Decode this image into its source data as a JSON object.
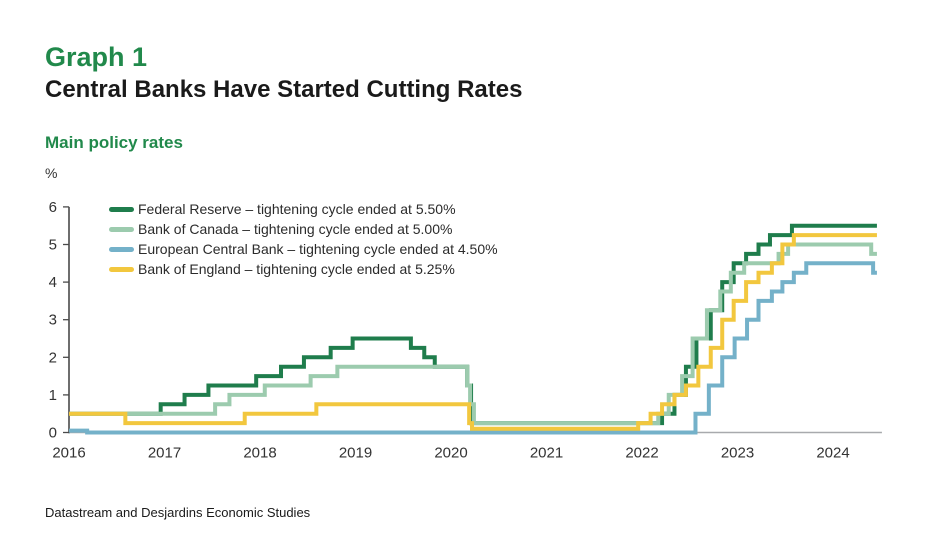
{
  "header": {
    "graph_label": "Graph 1",
    "title": "Central Banks Have Started Cutting Rates"
  },
  "subtitle": "Main policy rates",
  "unit_label": "%",
  "source": "Datastream and Desjardins Economic Studies",
  "colors": {
    "accent_green": "#21894b",
    "text_dark": "#1a1a1a",
    "axis": "#4a4a4a",
    "baseline": "#a8aaad"
  },
  "chart_data": {
    "type": "line",
    "step": true,
    "title": "Main policy rates",
    "ylabel": "%",
    "grid": false,
    "legend_position": "top-left-inside",
    "ylim": [
      0,
      6
    ],
    "y_ticks": [
      0,
      1,
      2,
      3,
      4,
      5,
      6
    ],
    "x_ticks": [
      2016,
      2017,
      2018,
      2019,
      2020,
      2021,
      2022,
      2023,
      2024
    ],
    "x_range": [
      2016,
      2024.46
    ],
    "series": [
      {
        "name": "Federal Reserve",
        "legend_label": "Federal Reserve – tightening cycle ended at 5.50%",
        "color": "#1f7d4c",
        "end_value": 5.5,
        "points": [
          [
            2016.0,
            0.5
          ],
          [
            2016.96,
            0.75
          ],
          [
            2017.21,
            1.0
          ],
          [
            2017.46,
            1.25
          ],
          [
            2017.96,
            1.5
          ],
          [
            2018.22,
            1.75
          ],
          [
            2018.46,
            2.0
          ],
          [
            2018.74,
            2.25
          ],
          [
            2018.97,
            2.5
          ],
          [
            2019.58,
            2.25
          ],
          [
            2019.72,
            2.0
          ],
          [
            2019.83,
            1.75
          ],
          [
            2020.17,
            1.25
          ],
          [
            2020.21,
            0.25
          ],
          [
            2022.21,
            0.5
          ],
          [
            2022.34,
            1.0
          ],
          [
            2022.46,
            1.75
          ],
          [
            2022.57,
            2.5
          ],
          [
            2022.72,
            3.25
          ],
          [
            2022.84,
            4.0
          ],
          [
            2022.96,
            4.5
          ],
          [
            2023.09,
            4.75
          ],
          [
            2023.22,
            5.0
          ],
          [
            2023.34,
            5.25
          ],
          [
            2023.57,
            5.5
          ]
        ]
      },
      {
        "name": "Bank of Canada",
        "legend_label": "Bank of Canada – tightening cycle ended at 5.00%",
        "color": "#9ccbae",
        "end_value": 4.75,
        "points": [
          [
            2016.0,
            0.5
          ],
          [
            2017.53,
            0.75
          ],
          [
            2017.68,
            1.0
          ],
          [
            2018.05,
            1.25
          ],
          [
            2018.53,
            1.5
          ],
          [
            2018.81,
            1.75
          ],
          [
            2020.17,
            1.25
          ],
          [
            2020.2,
            0.75
          ],
          [
            2020.24,
            0.25
          ],
          [
            2022.17,
            0.5
          ],
          [
            2022.28,
            1.0
          ],
          [
            2022.42,
            1.5
          ],
          [
            2022.53,
            2.5
          ],
          [
            2022.68,
            3.25
          ],
          [
            2022.82,
            3.75
          ],
          [
            2022.93,
            4.25
          ],
          [
            2023.07,
            4.5
          ],
          [
            2023.43,
            4.75
          ],
          [
            2023.53,
            5.0
          ],
          [
            2024.4,
            4.75
          ]
        ]
      },
      {
        "name": "European Central Bank",
        "legend_label": "European Central Bank – tightening cycle ended at 4.50%",
        "color": "#74b1c9",
        "end_value": 4.25,
        "points": [
          [
            2016.0,
            0.05
          ],
          [
            2016.19,
            0.0
          ],
          [
            2022.56,
            0.5
          ],
          [
            2022.7,
            1.25
          ],
          [
            2022.84,
            2.0
          ],
          [
            2022.97,
            2.5
          ],
          [
            2023.1,
            3.0
          ],
          [
            2023.22,
            3.5
          ],
          [
            2023.36,
            3.75
          ],
          [
            2023.47,
            4.0
          ],
          [
            2023.59,
            4.25
          ],
          [
            2023.72,
            4.5
          ],
          [
            2024.42,
            4.25
          ]
        ]
      },
      {
        "name": "Bank of England",
        "legend_label": "Bank of England – tightening cycle ended at 5.25%",
        "color": "#f2c73e",
        "end_value": 5.25,
        "points": [
          [
            2016.0,
            0.5
          ],
          [
            2016.59,
            0.25
          ],
          [
            2017.84,
            0.5
          ],
          [
            2018.59,
            0.75
          ],
          [
            2020.19,
            0.25
          ],
          [
            2020.22,
            0.1
          ],
          [
            2021.96,
            0.25
          ],
          [
            2022.09,
            0.5
          ],
          [
            2022.21,
            0.75
          ],
          [
            2022.34,
            1.0
          ],
          [
            2022.46,
            1.25
          ],
          [
            2022.59,
            1.75
          ],
          [
            2022.72,
            2.25
          ],
          [
            2022.84,
            3.0
          ],
          [
            2022.96,
            3.5
          ],
          [
            2023.09,
            4.0
          ],
          [
            2023.22,
            4.25
          ],
          [
            2023.36,
            4.5
          ],
          [
            2023.47,
            5.0
          ],
          [
            2023.59,
            5.25
          ]
        ]
      }
    ]
  }
}
